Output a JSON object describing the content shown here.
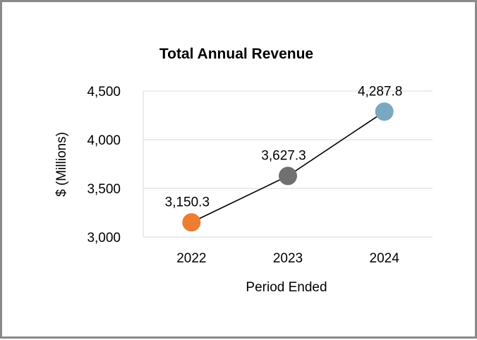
{
  "chart_data": {
    "type": "line",
    "title": "Total Annual Revenue",
    "xlabel": "Period Ended",
    "ylabel": "$ (Millions)",
    "categories": [
      "2022",
      "2023",
      "2024"
    ],
    "values": [
      3150.3,
      3627.3,
      4287.8
    ],
    "data_labels": [
      "3,150.3",
      "3,627.3",
      "4,287.8"
    ],
    "marker_colors": [
      "#ed7d31",
      "#707070",
      "#7aa7c2"
    ],
    "line_color": "#000000",
    "ylim": [
      3000,
      4500
    ],
    "yticks": [
      3000,
      3500,
      4000,
      4500
    ],
    "ytick_labels": [
      "3,000",
      "3,500",
      "4,000",
      "4,500"
    ],
    "grid": true,
    "legend": "none"
  }
}
